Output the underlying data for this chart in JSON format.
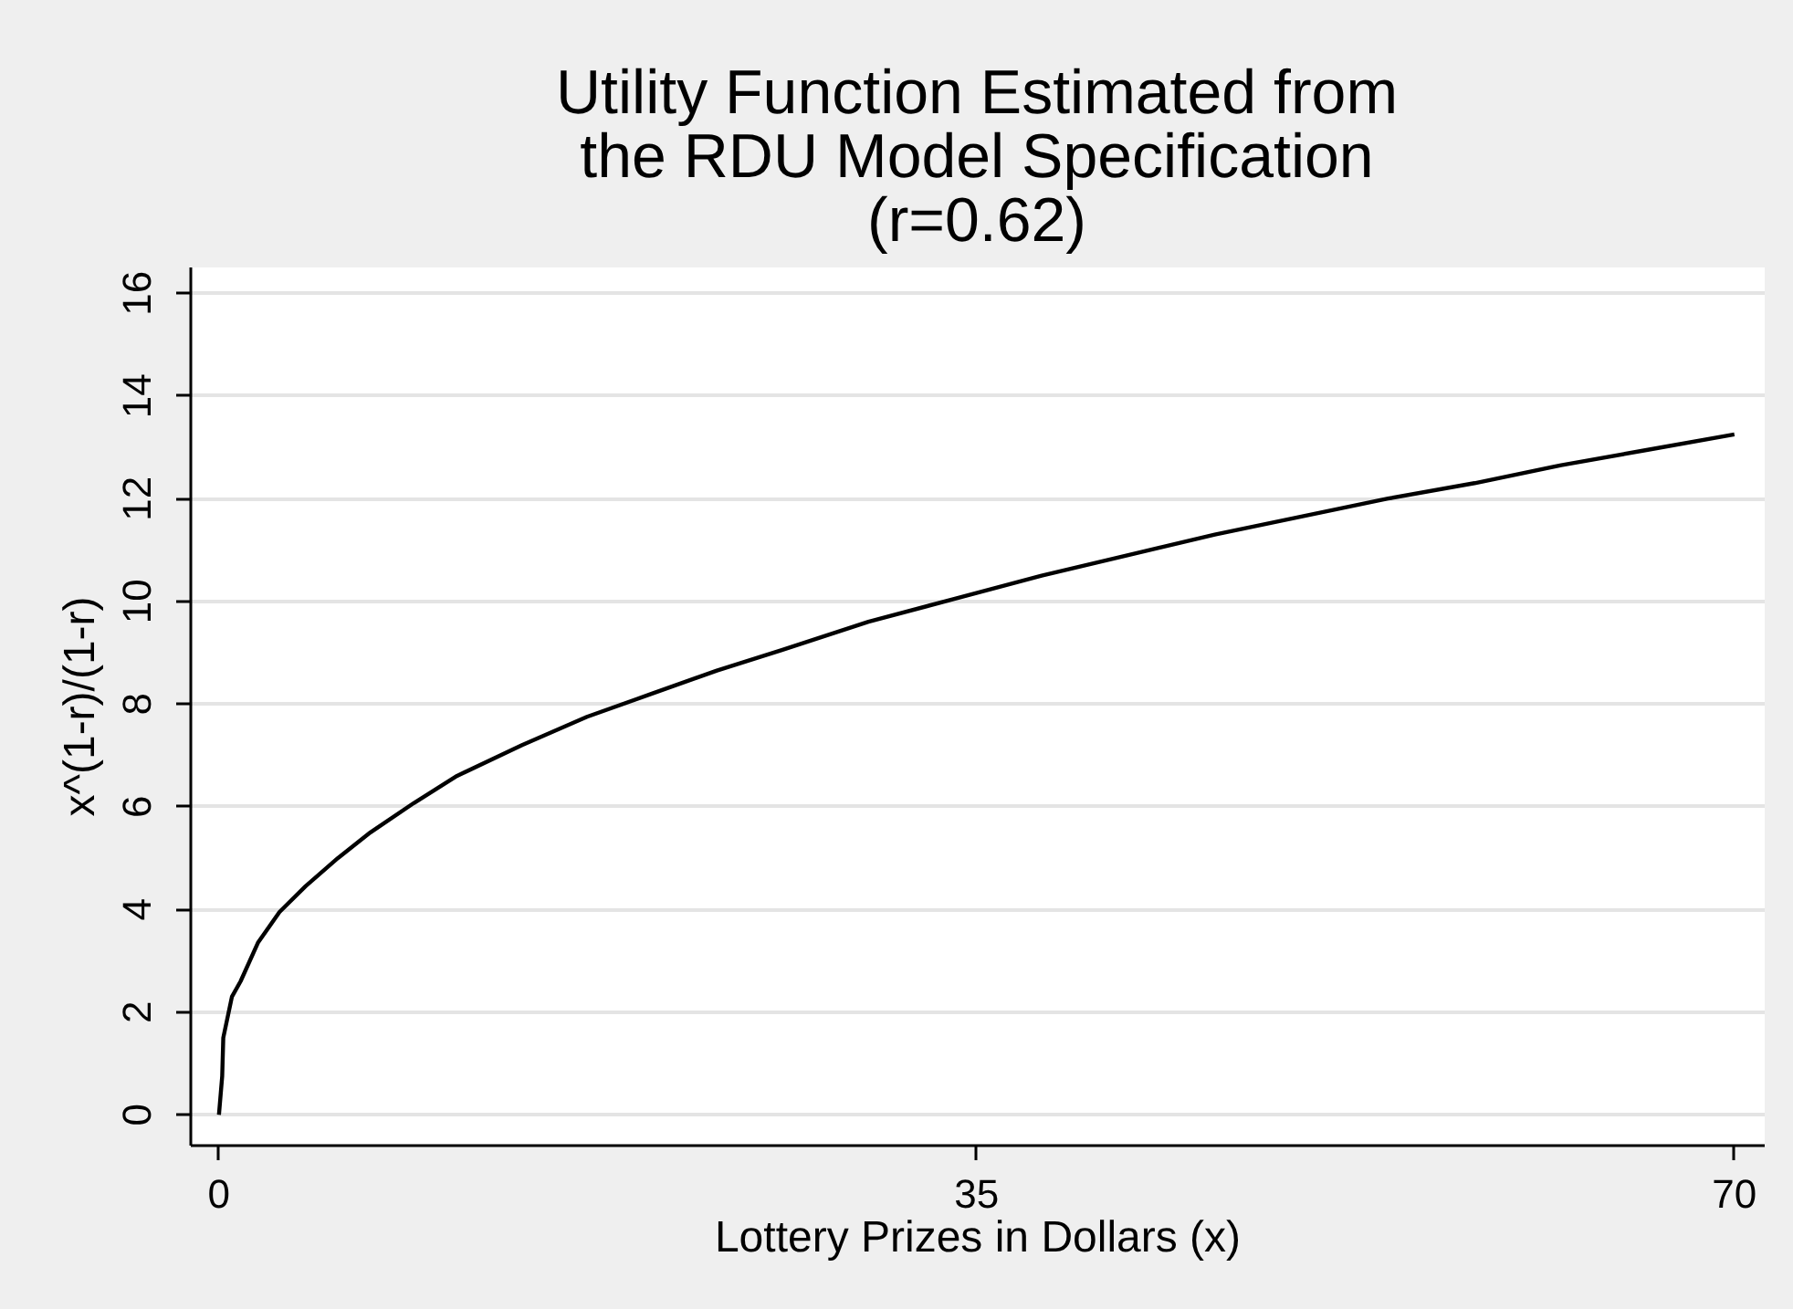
{
  "chart_data": {
    "type": "line",
    "title": "Utility Function Estimated from\nthe RDU Model Specification\n(r=0.62)",
    "xlabel": "Lottery Prizes in Dollars (x)",
    "ylabel": "x^(1-r)/(1-r)",
    "x": [
      0,
      0.15,
      0.2,
      0.6,
      1,
      1.8,
      2.8,
      4,
      5.5,
      7,
      9,
      11,
      14,
      17,
      20,
      23,
      26,
      30,
      34,
      38,
      42,
      46,
      50,
      54,
      58,
      62,
      66,
      70
    ],
    "values": [
      0,
      0.75,
      1.5,
      2.3,
      2.6,
      3.35,
      3.95,
      4.45,
      5.0,
      5.5,
      6.07,
      6.6,
      7.2,
      7.75,
      8.2,
      8.65,
      9.05,
      9.6,
      10.05,
      10.5,
      10.9,
      11.3,
      11.65,
      12.0,
      12.3,
      12.65,
      12.95,
      13.25
    ],
    "color": "#000000",
    "line_style": "solid",
    "grid": "y",
    "xlim": [
      -1.3,
      71.4
    ],
    "ylim": [
      -0.6,
      16.5
    ],
    "xticks": [
      0,
      35,
      70
    ],
    "yticks": [
      0,
      2,
      4,
      6,
      8,
      10,
      12,
      14,
      16
    ]
  }
}
